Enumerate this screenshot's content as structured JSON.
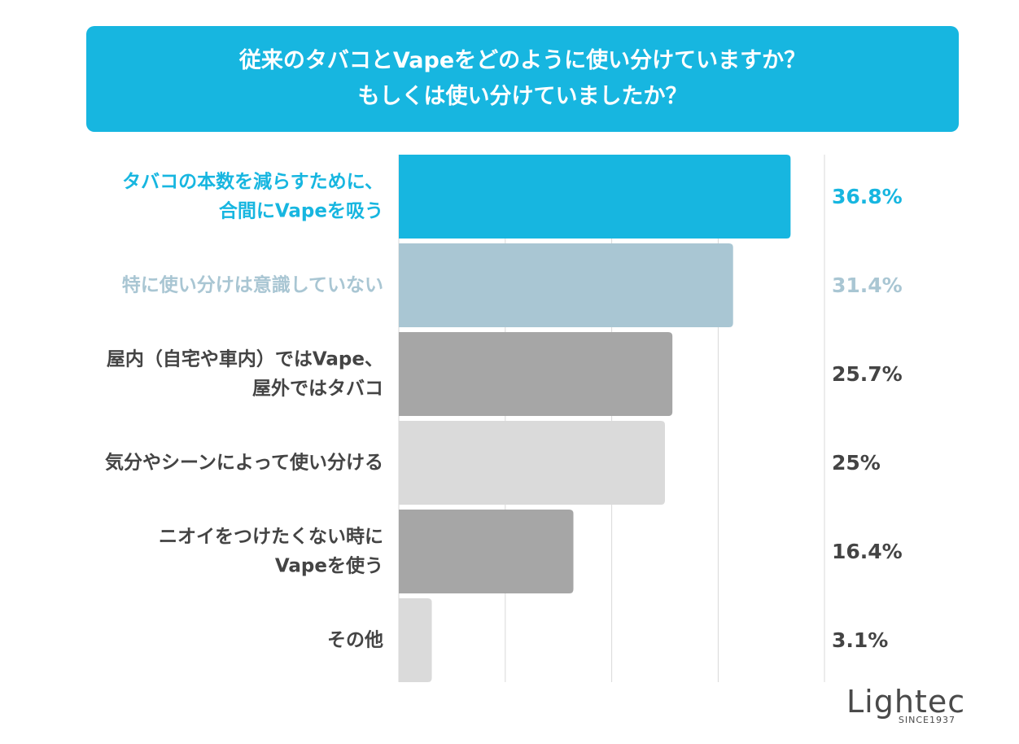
{
  "header": {
    "title_line1": "従来のタバコとVapeをどのように使い分けていますか？",
    "title_line2": "もしくは使い分けていましたか？"
  },
  "colors": {
    "accent": "#17b6e0",
    "light_blue": "#a9c6d3",
    "dark_gray": "#a6a6a6",
    "light_gray": "#dadada",
    "text_dark": "#444444",
    "grid": "#d9d9d9"
  },
  "chart_data": {
    "type": "bar",
    "orientation": "horizontal",
    "title": "従来のタバコとVapeをどのように使い分けていますか？ もしくは使い分けていましたか？",
    "categories": [
      [
        "タバコの本数を減らすために、",
        "合間にVapeを吸う"
      ],
      [
        "特に使い分けは意識していない"
      ],
      [
        "屋内（自宅や車内）ではVape、",
        "屋外ではタバコ"
      ],
      [
        "気分やシーンによって使い分ける"
      ],
      [
        "ニオイをつけたくない時に",
        "Vapeを使う"
      ],
      [
        "その他"
      ]
    ],
    "values": [
      36.8,
      31.4,
      25.7,
      25,
      16.4,
      3.1
    ],
    "value_labels": [
      "36.8%",
      "31.4%",
      "25.7%",
      "25%",
      "16.4%",
      "3.1%"
    ],
    "bar_colors": [
      "#17b6e0",
      "#a9c6d3",
      "#a6a6a6",
      "#dadada",
      "#a6a6a6",
      "#dadada"
    ],
    "label_colors": [
      "#17b6e0",
      "#a9c6d3",
      "#444444",
      "#444444",
      "#444444",
      "#444444"
    ],
    "xlim": [
      0,
      40
    ],
    "grid_step": 10,
    "xlabel": "",
    "ylabel": ""
  },
  "logo": {
    "word": "Lightec",
    "sub": "SINCE1937"
  }
}
